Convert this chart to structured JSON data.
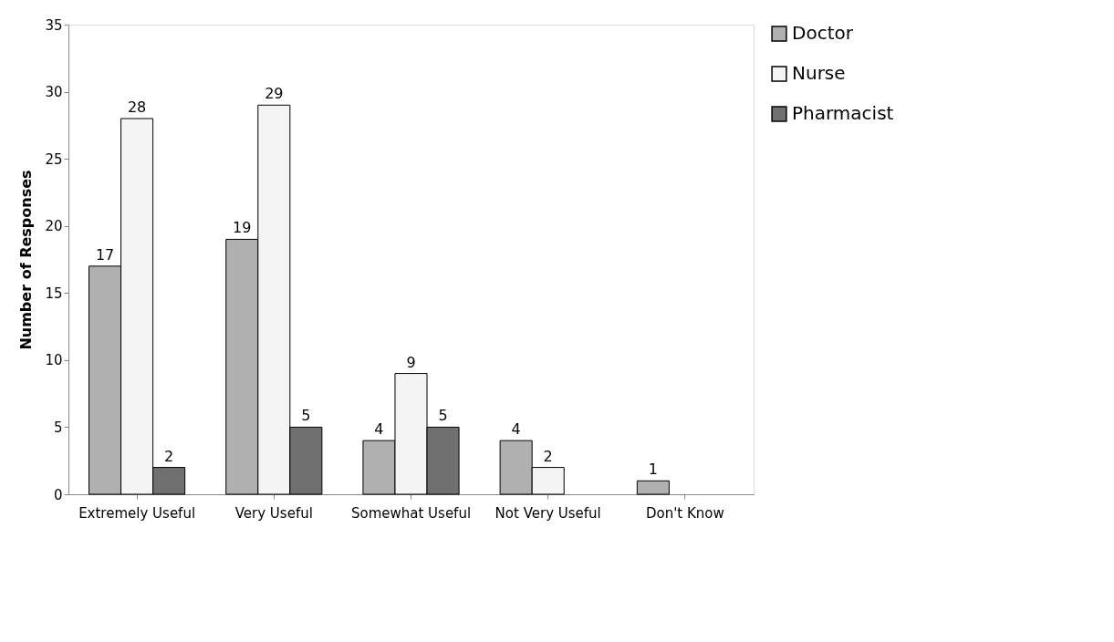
{
  "chart_data": {
    "type": "bar",
    "ylabel": "Number of Responses",
    "categories": [
      "Extremely Useful",
      "Very Useful",
      "Somewhat Useful",
      "Not Very Useful",
      "Don't Know"
    ],
    "series": [
      {
        "name": "Doctor",
        "color": "#b0b0b0",
        "values": [
          17,
          19,
          4,
          4,
          1
        ]
      },
      {
        "name": "Nurse",
        "color": "#f4f4f4",
        "values": [
          28,
          29,
          9,
          2,
          null
        ]
      },
      {
        "name": "Pharmacist",
        "color": "#707070",
        "values": [
          2,
          5,
          5,
          null,
          null
        ]
      }
    ],
    "ylim": [
      0,
      35
    ],
    "yticks": [
      0,
      5,
      10,
      15,
      20,
      25,
      30,
      35
    ],
    "grid": false,
    "legend": "right",
    "data_labels": true
  }
}
